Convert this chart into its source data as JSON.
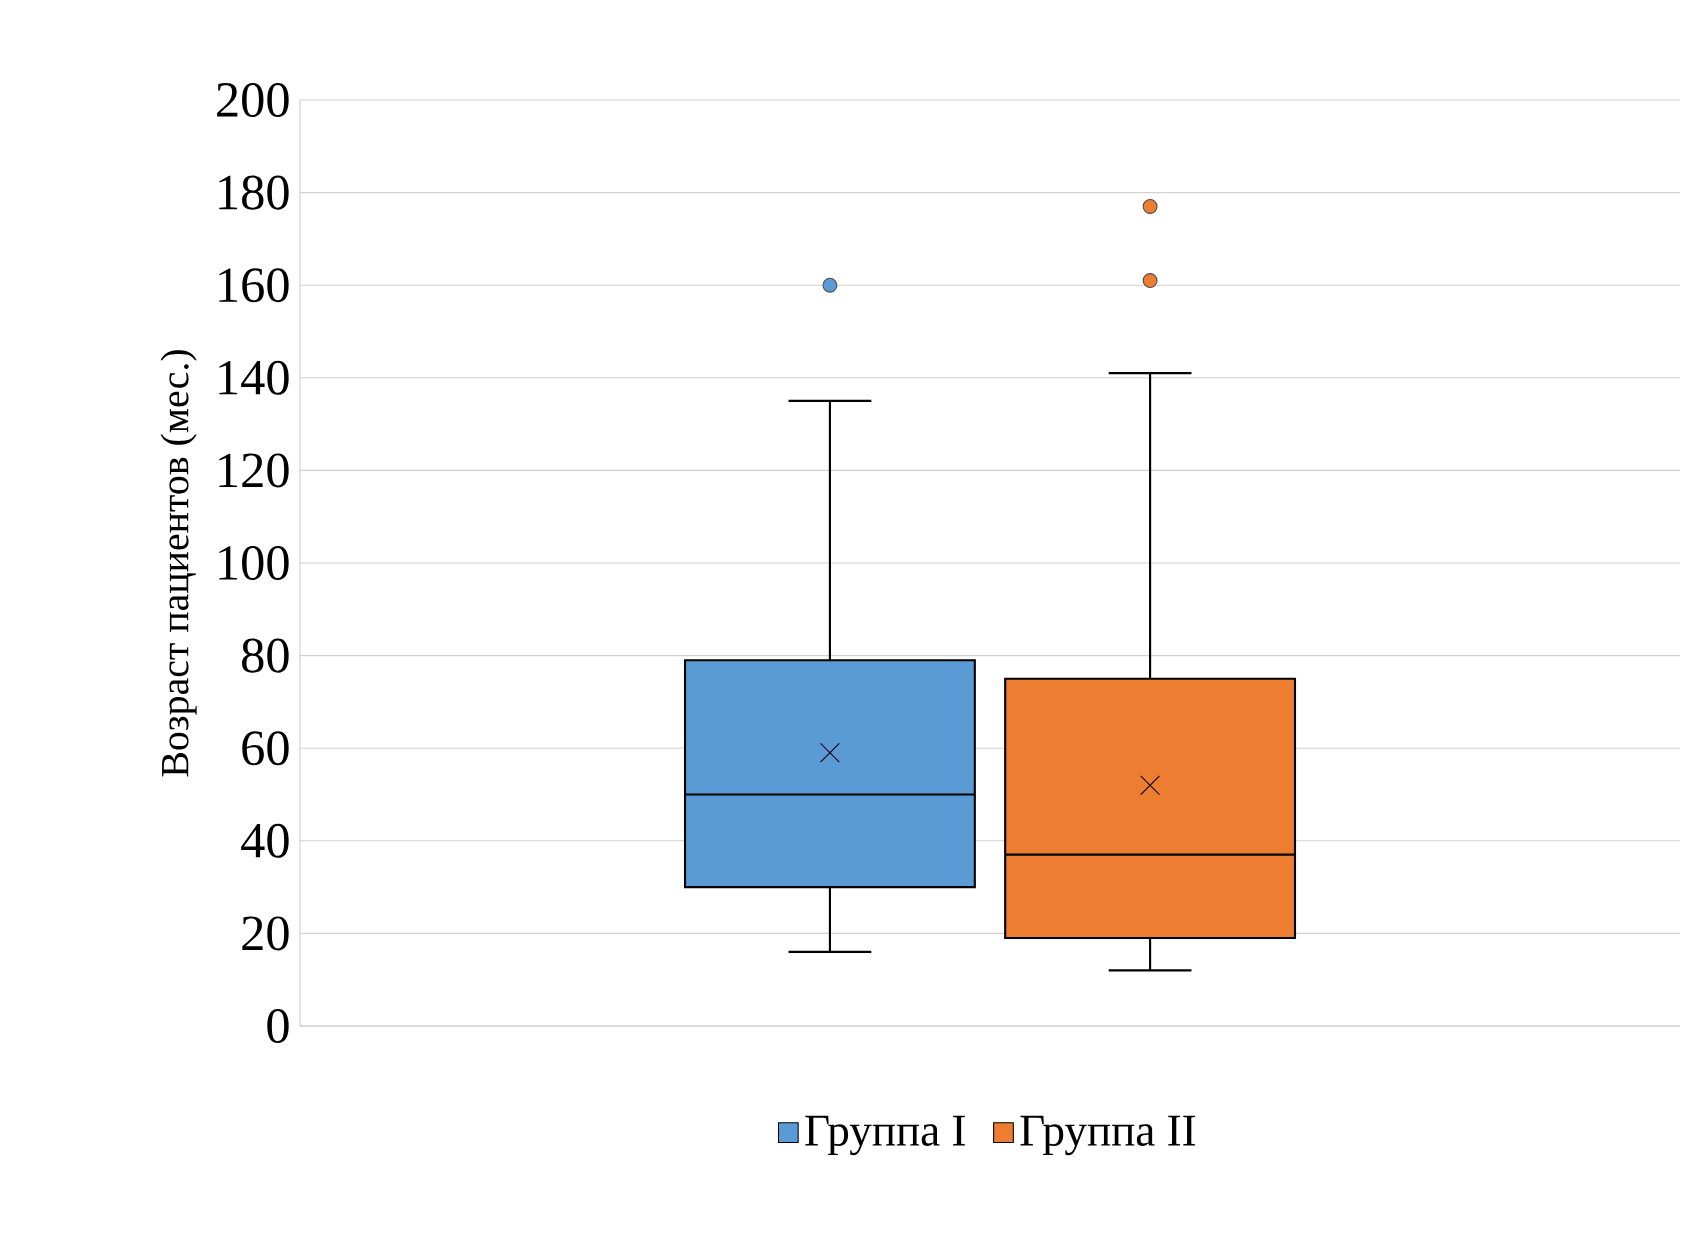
{
  "chart_data": {
    "type": "box",
    "ylabel": "Возраст пациентов (мес.)",
    "categories": [
      null
    ],
    "series": [
      {
        "name": "Группа I",
        "color": "#5b9bd5",
        "boxes": [
          {
            "low": 16,
            "q1": 30,
            "median": 50,
            "q3": 79,
            "high": 135,
            "mean": 59,
            "outliers": [
              160
            ]
          }
        ]
      },
      {
        "name": "Группа II",
        "color": "#ed7d31",
        "boxes": [
          {
            "low": 12,
            "q1": 19,
            "median": 37,
            "q3": 75,
            "high": 141,
            "mean": 52,
            "outliers": [
              161,
              177
            ]
          }
        ]
      }
    ],
    "ylim": [
      0,
      200
    ],
    "yticks": [
      0,
      20,
      40,
      60,
      80,
      100,
      120,
      140,
      160,
      180,
      200
    ],
    "grid": "y",
    "legend": "bottom"
  }
}
